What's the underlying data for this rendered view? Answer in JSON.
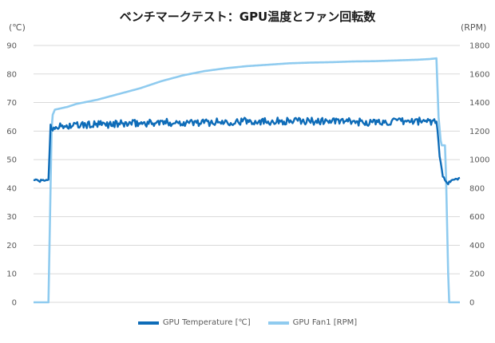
{
  "chart_data": {
    "type": "line",
    "title": "ベンチマークテスト：GPU温度とファン回転数",
    "y_left_unit": "(℃)",
    "y_right_unit": "(RPM)",
    "ylim_left": [
      0,
      90
    ],
    "ylim_right": [
      0,
      1800
    ],
    "yticks_left": [
      "90",
      "80",
      "70",
      "60",
      "50",
      "40",
      "30",
      "20",
      "10",
      "0"
    ],
    "yticks_right": [
      "1800",
      "1600",
      "1400",
      "1200",
      "1000",
      "800",
      "600",
      "400",
      "200",
      "0"
    ],
    "grid": true,
    "legend_position": "bottom",
    "colors": {
      "temperature": "#0e6cb8",
      "fan": "#8fcbef",
      "grid": "#d9d9d9"
    },
    "series": [
      {
        "name": "GPU Temperature [℃]",
        "axis": "left",
        "t": [
          0,
          1.5,
          3.5,
          4,
          4.6,
          5,
          6,
          10,
          20,
          30,
          40,
          50,
          60,
          70,
          80,
          90,
          94,
          94.6,
          95.2,
          96,
          96.5,
          97,
          98,
          100
        ],
        "values": [
          43,
          42.5,
          43,
          62,
          60.5,
          62,
          61.5,
          62,
          62.5,
          63,
          63,
          63.5,
          63.5,
          63.5,
          63,
          63.5,
          63.5,
          63.5,
          52,
          44,
          43,
          41.5,
          42.5,
          43.5
        ]
      },
      {
        "name": "GPU Fan1 [RPM]",
        "axis": "right",
        "t": [
          0,
          3.5,
          4.3,
          5,
          8,
          10,
          15,
          20,
          25,
          30,
          35,
          40,
          45,
          50,
          55,
          60,
          65,
          70,
          75,
          80,
          85,
          90,
          93,
          94.5,
          95,
          95.6,
          96.6,
          97.4,
          98,
          100
        ],
        "values": [
          0,
          0,
          1300,
          1350,
          1370,
          1390,
          1420,
          1460,
          1500,
          1550,
          1590,
          1620,
          1640,
          1655,
          1665,
          1675,
          1680,
          1683,
          1688,
          1690,
          1695,
          1700,
          1705,
          1710,
          1300,
          1100,
          1100,
          0,
          0,
          0
        ]
      }
    ]
  }
}
